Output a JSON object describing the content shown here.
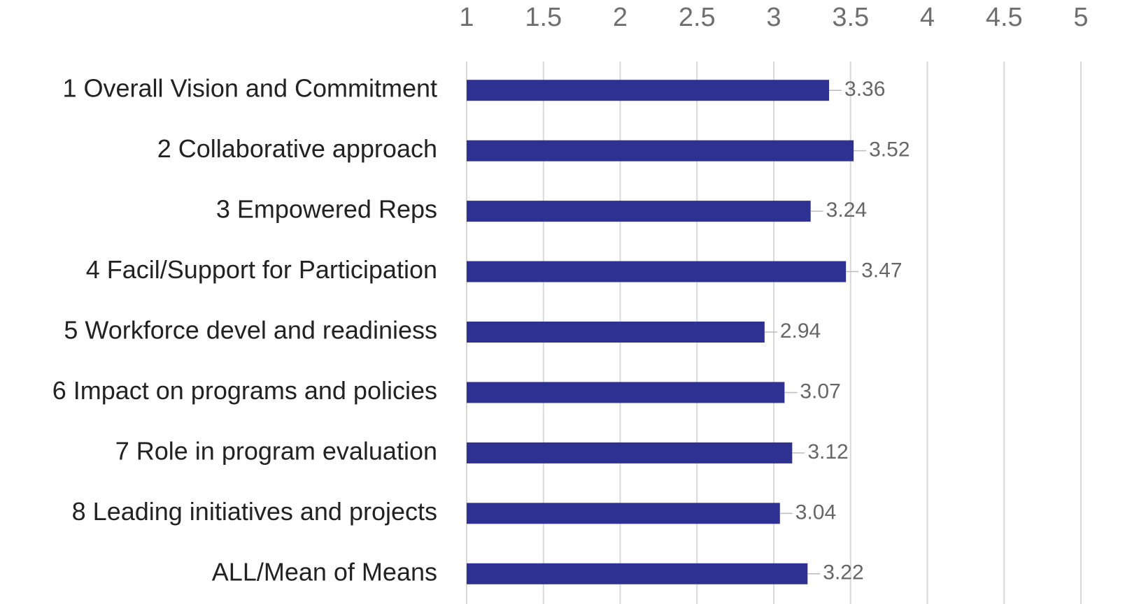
{
  "chart_data": {
    "type": "bar",
    "orientation": "horizontal",
    "categories": [
      "1 Overall Vision and Commitment",
      "2 Collaborative approach",
      "3 Empowered Reps",
      "4 Facil/Support for Participation",
      "5 Workforce devel and readiniess",
      "6 Impact on programs and policies",
      "7 Role in program evaluation",
      "8 Leading initiatives and projects",
      "ALL/Mean of Means"
    ],
    "values": [
      3.36,
      3.52,
      3.24,
      3.47,
      2.94,
      3.07,
      3.12,
      3.04,
      3.22
    ],
    "color": "#2e3192",
    "xlim": [
      1,
      5
    ],
    "xticks": [
      1,
      1.5,
      2,
      2.5,
      3,
      3.5,
      4,
      4.5,
      5
    ],
    "grid": true
  }
}
